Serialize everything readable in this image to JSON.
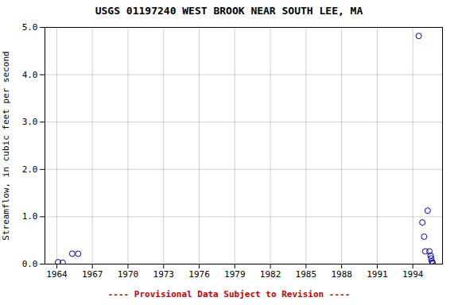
{
  "chart_data": {
    "type": "scatter",
    "title": "USGS 01197240 WEST BROOK NEAR SOUTH LEE, MA",
    "ylabel": "Streamflow, in cubic feet per second",
    "annotations": [
      "---- Provisional Data Subject to Revision ----"
    ],
    "x": [
      1964.1,
      1964.5,
      1965.3,
      1965.8,
      1994.5,
      1994.8,
      1994.95,
      1995.05,
      1995.25,
      1995.4,
      1995.5,
      1995.55,
      1995.6,
      1995.65,
      1995.68
    ],
    "values": [
      0.04,
      0.03,
      0.22,
      0.22,
      4.82,
      0.88,
      0.58,
      0.27,
      1.13,
      0.27,
      0.18,
      0.12,
      0.06,
      0.03,
      0.01
    ],
    "color": "#0000cc",
    "marker": "open_circle",
    "xlim": [
      1963.0,
      1996.5
    ],
    "ylim": [
      0.0,
      5.0
    ],
    "xticks": [
      1964,
      1967,
      1970,
      1973,
      1976,
      1979,
      1982,
      1985,
      1988,
      1991,
      1994
    ],
    "yticks": [
      {
        "value": 0.0,
        "label": "0.0"
      },
      {
        "value": 1.0,
        "label": "1.0"
      },
      {
        "value": 2.0,
        "label": "2.0"
      },
      {
        "value": 3.0,
        "label": "3.0"
      },
      {
        "value": 4.0,
        "label": "4.0"
      },
      {
        "value": 5.0,
        "label": "5.0"
      }
    ],
    "grid": true
  }
}
